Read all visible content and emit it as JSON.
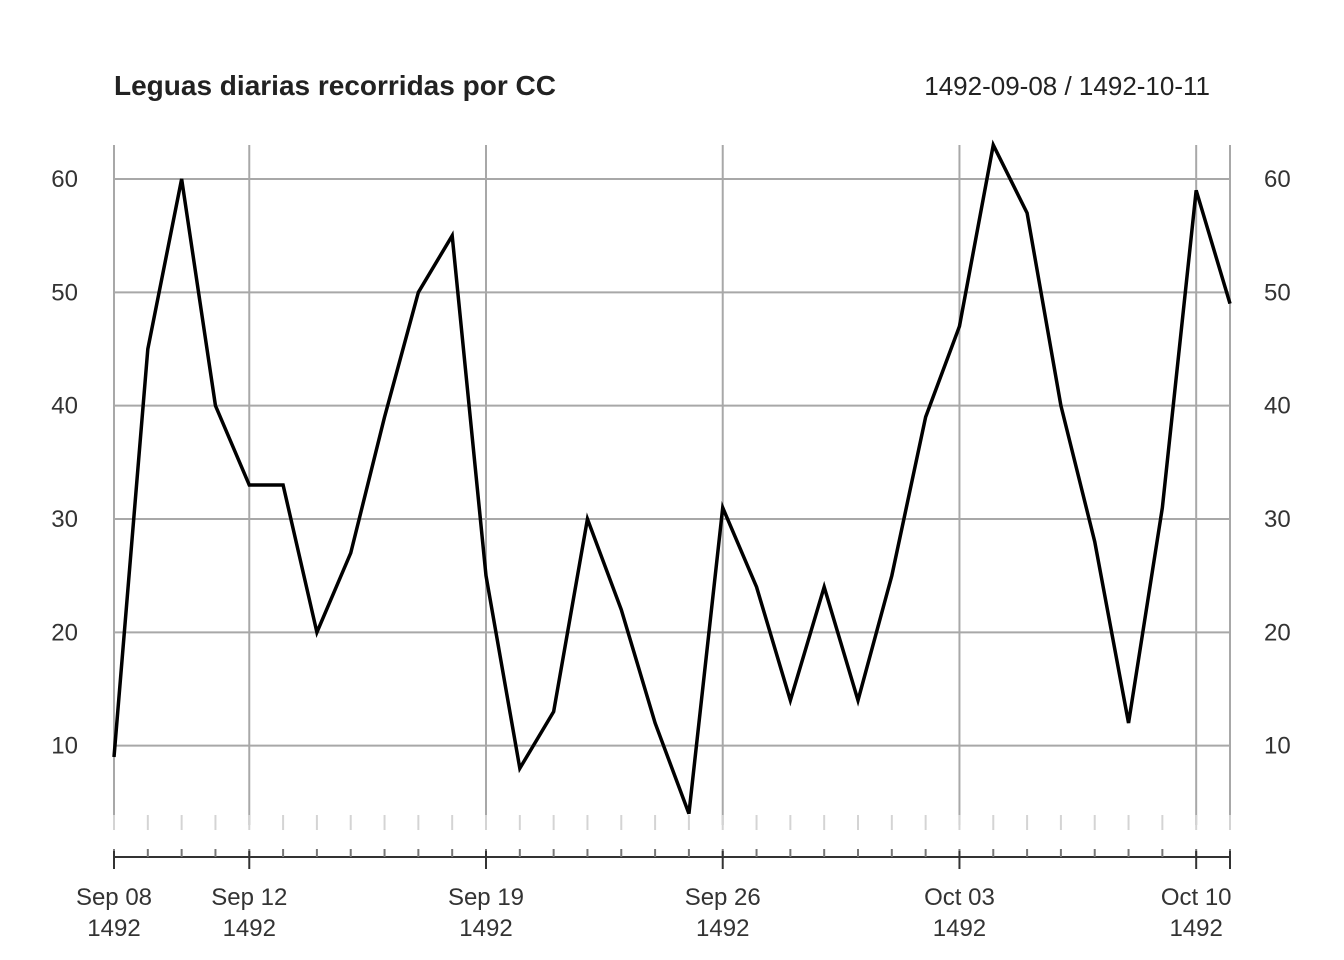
{
  "chart_data": {
    "type": "line",
    "title": "Leguas diarias recorridas por CC",
    "date_range_label": "1492-09-08 / 1492-10-11",
    "x": [
      "1492-09-08",
      "1492-09-09",
      "1492-09-10",
      "1492-09-11",
      "1492-09-12",
      "1492-09-13",
      "1492-09-14",
      "1492-09-15",
      "1492-09-16",
      "1492-09-17",
      "1492-09-18",
      "1492-09-19",
      "1492-09-20",
      "1492-09-21",
      "1492-09-22",
      "1492-09-23",
      "1492-09-24",
      "1492-09-25",
      "1492-09-26",
      "1492-09-27",
      "1492-09-28",
      "1492-09-29",
      "1492-09-30",
      "1492-10-01",
      "1492-10-02",
      "1492-10-03",
      "1492-10-04",
      "1492-10-05",
      "1492-10-06",
      "1492-10-07",
      "1492-10-08",
      "1492-10-09",
      "1492-10-10",
      "1492-10-11"
    ],
    "series": [
      {
        "values": [
          9,
          45,
          60,
          40,
          33,
          33,
          20,
          27,
          39,
          50,
          55,
          25,
          8,
          13,
          30,
          22,
          12,
          4,
          31,
          24,
          14,
          24,
          14,
          25,
          39,
          47,
          63,
          57,
          40,
          28,
          12,
          31,
          59,
          49
        ],
        "color": "#000000"
      }
    ],
    "ylim": [
      3,
      63
    ],
    "y_ticks": [
      10,
      20,
      30,
      40,
      50,
      60
    ],
    "y_tick_labels": [
      "10",
      "20",
      "30",
      "40",
      "50",
      "60"
    ],
    "x_major_ticks": [
      {
        "date": "1492-09-08",
        "label_line1": "Sep 08",
        "label_line2": "1492"
      },
      {
        "date": "1492-09-12",
        "label_line1": "Sep 12",
        "label_line2": "1492"
      },
      {
        "date": "1492-09-19",
        "label_line1": "Sep 19",
        "label_line2": "1492"
      },
      {
        "date": "1492-09-26",
        "label_line1": "Sep 26",
        "label_line2": "1492"
      },
      {
        "date": "1492-10-03",
        "label_line1": "Oct 03",
        "label_line2": "1492"
      },
      {
        "date": "1492-10-10",
        "label_line1": "Oct 10",
        "label_line2": "1492"
      }
    ],
    "grid": true,
    "y_axis_labels": "both sides"
  }
}
